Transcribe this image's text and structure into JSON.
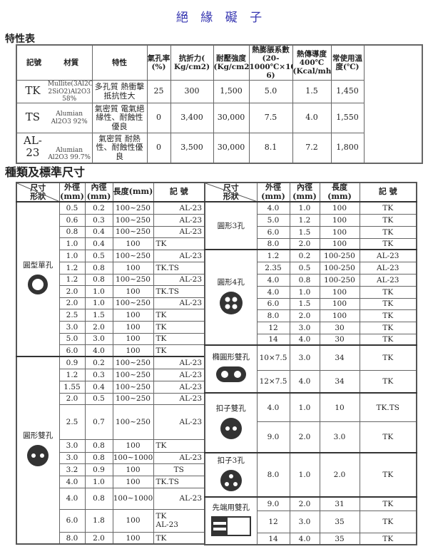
{
  "title": "絕 緣 礙 子",
  "properties": {
    "heading": "特性表",
    "headers": [
      "記號",
      "材質",
      "特性",
      "氣孔率(%)",
      "抗折力( Kg/cm2)",
      "耐壓強度(Kg/cm2)",
      "熱膨脹系數(20-1000℃×10-6)",
      "熱傳導度400℃(Kcal/mh℃)",
      "常使用溫度(℃)"
    ],
    "rows": [
      {
        "code": "TK",
        "material": "Mullite(3Al2O3-2SiO2)Al2O3 58%",
        "feature": "多孔質 熱衝擊抵抗性大",
        "porosity": "25",
        "flexural": "300",
        "compressive": "1,500",
        "expansion": "5.0",
        "conductivity": "1.5",
        "temp": "1,450"
      },
      {
        "code": "TS",
        "material": "Alumian Al2O3 92%",
        "feature": "氣密質 電氣絕緣性、耐蝕性優良",
        "porosity": "0",
        "flexural": "3,400",
        "compressive": "30,000",
        "expansion": "7.5",
        "conductivity": "4.0",
        "temp": "1,550"
      },
      {
        "code": "AL-23",
        "material": "Alumian Al2O3 99.7%",
        "feature": "氣密質 耐熱性、耐蝕性優良",
        "porosity": "0",
        "flexural": "3,500",
        "compressive": "30,000",
        "expansion": "8.1",
        "conductivity": "7.2",
        "temp": "1,800"
      }
    ]
  },
  "sizes": {
    "heading": "種類及標準尺寸",
    "header": {
      "size": "尺寸",
      "shape": "形狀",
      "od": "外徑(mm)",
      "id": "內徑(mm)",
      "len": "長度(mm)",
      "code": "記 號"
    },
    "left": [
      {
        "shape": "圓型單孔",
        "icon": "ring-single-hole-icon",
        "rows": [
          [
            "0.5",
            "0.2",
            "100~250",
            "AL-23"
          ],
          [
            "0.6",
            "0.3",
            "100~250",
            "AL-23"
          ],
          [
            "0.8",
            "0.4",
            "100~250",
            "AL-23"
          ],
          [
            "1.0",
            "0.4",
            "100",
            "TK"
          ],
          [
            "1.0",
            "0.5",
            "100~250",
            "AL-23"
          ],
          [
            "1.2",
            "0.8",
            "100",
            "TK.TS"
          ],
          [
            "1.2",
            "0.8",
            "100~250",
            "AL-23"
          ],
          [
            "2.0",
            "1.0",
            "100",
            "TK.TS"
          ],
          [
            "2.0",
            "1.0",
            "100~250",
            "AL-23"
          ],
          [
            "2.5",
            "1.5",
            "100",
            "TK"
          ],
          [
            "3.0",
            "2.0",
            "100",
            "TK"
          ],
          [
            "5.0",
            "3.0",
            "100",
            "TK"
          ],
          [
            "6.0",
            "4.0",
            "100",
            "TK"
          ]
        ]
      },
      {
        "shape": "圓形雙孔",
        "icon": "round-two-hole-icon",
        "rows": [
          [
            "0.9",
            "0.2",
            "100~250",
            "AL-23"
          ],
          [
            "1.2",
            "0.3",
            "100~250",
            "AL-23"
          ],
          [
            "1.55",
            "0.4",
            "100~250",
            "AL-23"
          ],
          [
            "2.0",
            "0.5",
            "100~250",
            "AL-23"
          ],
          [
            "2.5",
            "0.7",
            "100~250",
            "AL-23"
          ],
          [
            "3.0",
            "0.8",
            "100",
            "TK"
          ],
          [
            "3.0",
            "0.8",
            "100~1000",
            "AL-23"
          ],
          [
            "3.2",
            "0.9",
            "100",
            "TS"
          ],
          [
            "4.0",
            "1.0",
            "100",
            "TK.TS"
          ],
          [
            "4.0",
            "0.8",
            "100~1000",
            "AL-23"
          ],
          [
            "6.0",
            "1.8",
            "100",
            "TK AL-23"
          ],
          [
            "8.0",
            "2.0",
            "100",
            "TK"
          ]
        ]
      }
    ],
    "right": [
      {
        "shape": "圓形3孔",
        "icon": "",
        "rows": [
          [
            "4.0",
            "1.0",
            "100",
            "TK"
          ],
          [
            "5.0",
            "1.2",
            "100",
            "TK"
          ],
          [
            "6.0",
            "1.5",
            "100",
            "TK"
          ],
          [
            "8.0",
            "2.0",
            "100",
            "TK"
          ]
        ]
      },
      {
        "shape": "圓形4孔",
        "icon": "round-four-hole-icon",
        "rows": [
          [
            "1.2",
            "0.2",
            "100-250",
            "AL-23"
          ],
          [
            "2.35",
            "0.5",
            "100-250",
            "AL-23"
          ],
          [
            "4.0",
            "0.8",
            "100-250",
            "AL-23"
          ],
          [
            "4.0",
            "1.0",
            "100",
            "TK"
          ],
          [
            "6.0",
            "1.5",
            "100",
            "TK"
          ],
          [
            "8.0",
            "2.0",
            "100",
            "TK"
          ],
          [
            "12",
            "3.0",
            "30",
            "TK"
          ],
          [
            "14",
            "4.0",
            "30",
            "TK"
          ]
        ]
      },
      {
        "shape": "橢圓形雙孔",
        "icon": "oval-two-hole-icon",
        "rows": [
          [
            "10×7.5",
            "3.0",
            "34",
            "TK"
          ],
          [
            "12×7.5",
            "4.0",
            "34",
            "TK"
          ]
        ]
      },
      {
        "shape": "扣子雙孔",
        "icon": "button-two-hole-icon",
        "rows": [
          [
            "4.0",
            "1.0",
            "10",
            "TK.TS"
          ],
          [
            "9.0",
            "2.0",
            "3.0",
            "TK"
          ]
        ]
      },
      {
        "shape": "扣子3孔",
        "icon": "button-three-hole-icon",
        "rows": [
          [
            "8.0",
            "1.0",
            "2.0",
            "TK"
          ]
        ]
      },
      {
        "shape": "先端用雙孔",
        "icon": "tip-two-hole-icon",
        "rows": [
          [
            "9.0",
            "2.0",
            "31",
            "TK"
          ],
          [
            "12",
            "3.0",
            "35",
            "TK"
          ],
          [
            "14",
            "4.0",
            "35",
            "TK"
          ]
        ]
      }
    ]
  }
}
